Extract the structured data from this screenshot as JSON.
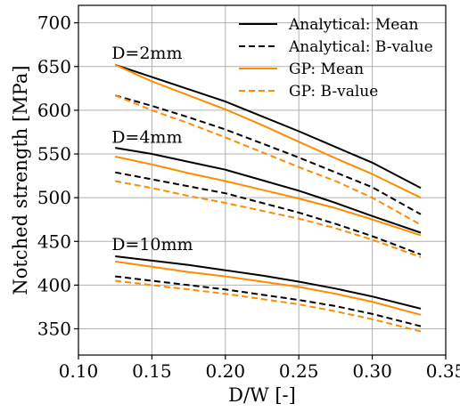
{
  "chart_data": {
    "type": "line",
    "xlabel": "D/W [-]",
    "ylabel": "Notched strength [MPa]",
    "xlim": [
      0.1,
      0.35
    ],
    "ylim": [
      320,
      720
    ],
    "xticks": [
      0.1,
      0.15,
      0.2,
      0.25,
      0.3,
      0.35
    ],
    "xtick_labels": [
      "0.10",
      "0.15",
      "0.20",
      "0.25",
      "0.30",
      "0.35"
    ],
    "yticks": [
      350,
      400,
      450,
      500,
      550,
      600,
      650,
      700
    ],
    "ytick_labels": [
      "350",
      "400",
      "450",
      "500",
      "550",
      "600",
      "650",
      "700"
    ],
    "grid": true,
    "legend_position": "top-right",
    "colors": {
      "analytical": "#000000",
      "gp": "#ff8c00"
    },
    "legend": [
      {
        "label": "Analytical: Mean",
        "color": "#000000",
        "dash": "solid"
      },
      {
        "label": "Analytical: B-value",
        "color": "#000000",
        "dash": "dashed"
      },
      {
        "label": "GP: Mean",
        "color": "#ff8c00",
        "dash": "solid"
      },
      {
        "label": "GP: B-value",
        "color": "#ff8c00",
        "dash": "dashed"
      }
    ],
    "annotations": [
      {
        "text": "D=2mm",
        "x": 0.125,
        "y": 659
      },
      {
        "text": "D=4mm",
        "x": 0.125,
        "y": 563
      },
      {
        "text": "D=10mm",
        "x": 0.125,
        "y": 440
      }
    ],
    "series": [
      {
        "group": "D=2mm",
        "kind": "analytical",
        "stat": "mean",
        "color": "#000000",
        "dash": "solid",
        "points": [
          [
            0.125,
            652
          ],
          [
            0.15,
            638
          ],
          [
            0.175,
            624
          ],
          [
            0.2,
            610
          ],
          [
            0.225,
            593
          ],
          [
            0.25,
            576
          ],
          [
            0.275,
            558
          ],
          [
            0.3,
            540
          ],
          [
            0.333,
            511
          ]
        ]
      },
      {
        "group": "D=2mm",
        "kind": "analytical",
        "stat": "b-value",
        "color": "#000000",
        "dash": "dashed",
        "points": [
          [
            0.125,
            617
          ],
          [
            0.15,
            605
          ],
          [
            0.175,
            592
          ],
          [
            0.2,
            578
          ],
          [
            0.225,
            562
          ],
          [
            0.25,
            546
          ],
          [
            0.275,
            529
          ],
          [
            0.3,
            512
          ],
          [
            0.333,
            481
          ]
        ]
      },
      {
        "group": "D=2mm",
        "kind": "gp",
        "stat": "mean",
        "color": "#ff8c00",
        "dash": "solid",
        "points": [
          [
            0.125,
            652
          ],
          [
            0.15,
            633
          ],
          [
            0.175,
            617
          ],
          [
            0.2,
            601
          ],
          [
            0.225,
            583
          ],
          [
            0.25,
            564
          ],
          [
            0.275,
            545
          ],
          [
            0.3,
            527
          ],
          [
            0.333,
            500
          ]
        ]
      },
      {
        "group": "D=2mm",
        "kind": "gp",
        "stat": "b-value",
        "color": "#ff8c00",
        "dash": "dashed",
        "points": [
          [
            0.125,
            617
          ],
          [
            0.15,
            600
          ],
          [
            0.175,
            585
          ],
          [
            0.2,
            569
          ],
          [
            0.225,
            552
          ],
          [
            0.25,
            535
          ],
          [
            0.275,
            519
          ],
          [
            0.3,
            500
          ],
          [
            0.333,
            469
          ]
        ]
      },
      {
        "group": "D=4mm",
        "kind": "analytical",
        "stat": "mean",
        "color": "#000000",
        "dash": "solid",
        "points": [
          [
            0.125,
            557
          ],
          [
            0.15,
            550
          ],
          [
            0.175,
            541
          ],
          [
            0.2,
            532
          ],
          [
            0.225,
            520
          ],
          [
            0.25,
            508
          ],
          [
            0.275,
            494
          ],
          [
            0.3,
            479
          ],
          [
            0.333,
            460
          ]
        ]
      },
      {
        "group": "D=4mm",
        "kind": "analytical",
        "stat": "b-value",
        "color": "#000000",
        "dash": "dashed",
        "points": [
          [
            0.125,
            529
          ],
          [
            0.15,
            521
          ],
          [
            0.175,
            513
          ],
          [
            0.2,
            505
          ],
          [
            0.225,
            494
          ],
          [
            0.25,
            483
          ],
          [
            0.275,
            470
          ],
          [
            0.3,
            456
          ],
          [
            0.333,
            435
          ]
        ]
      },
      {
        "group": "D=4mm",
        "kind": "gp",
        "stat": "mean",
        "color": "#ff8c00",
        "dash": "solid",
        "points": [
          [
            0.125,
            547
          ],
          [
            0.15,
            538
          ],
          [
            0.175,
            528
          ],
          [
            0.2,
            519
          ],
          [
            0.225,
            509
          ],
          [
            0.25,
            499
          ],
          [
            0.275,
            488
          ],
          [
            0.3,
            475
          ],
          [
            0.333,
            457
          ]
        ]
      },
      {
        "group": "D=4mm",
        "kind": "gp",
        "stat": "b-value",
        "color": "#ff8c00",
        "dash": "dashed",
        "points": [
          [
            0.125,
            519
          ],
          [
            0.15,
            511
          ],
          [
            0.175,
            502
          ],
          [
            0.2,
            494
          ],
          [
            0.225,
            485
          ],
          [
            0.25,
            476
          ],
          [
            0.275,
            465
          ],
          [
            0.3,
            452
          ],
          [
            0.333,
            432
          ]
        ]
      },
      {
        "group": "D=10mm",
        "kind": "analytical",
        "stat": "mean",
        "color": "#000000",
        "dash": "solid",
        "points": [
          [
            0.125,
            433
          ],
          [
            0.15,
            428
          ],
          [
            0.175,
            423
          ],
          [
            0.2,
            417
          ],
          [
            0.225,
            411
          ],
          [
            0.25,
            404
          ],
          [
            0.275,
            396
          ],
          [
            0.3,
            387
          ],
          [
            0.333,
            373
          ]
        ]
      },
      {
        "group": "D=10mm",
        "kind": "analytical",
        "stat": "b-value",
        "color": "#000000",
        "dash": "dashed",
        "points": [
          [
            0.125,
            410
          ],
          [
            0.15,
            405
          ],
          [
            0.175,
            400
          ],
          [
            0.2,
            395
          ],
          [
            0.225,
            389
          ],
          [
            0.25,
            383
          ],
          [
            0.275,
            376
          ],
          [
            0.3,
            367
          ],
          [
            0.333,
            353
          ]
        ]
      },
      {
        "group": "D=10mm",
        "kind": "gp",
        "stat": "mean",
        "color": "#ff8c00",
        "dash": "solid",
        "points": [
          [
            0.125,
            427
          ],
          [
            0.15,
            421
          ],
          [
            0.175,
            415
          ],
          [
            0.2,
            410
          ],
          [
            0.225,
            404
          ],
          [
            0.25,
            398
          ],
          [
            0.275,
            390
          ],
          [
            0.3,
            381
          ],
          [
            0.333,
            366
          ]
        ]
      },
      {
        "group": "D=10mm",
        "kind": "gp",
        "stat": "b-value",
        "color": "#ff8c00",
        "dash": "dashed",
        "points": [
          [
            0.125,
            405
          ],
          [
            0.15,
            400
          ],
          [
            0.175,
            395
          ],
          [
            0.2,
            390
          ],
          [
            0.225,
            384
          ],
          [
            0.25,
            378
          ],
          [
            0.275,
            370
          ],
          [
            0.3,
            361
          ],
          [
            0.333,
            347
          ]
        ]
      }
    ]
  }
}
